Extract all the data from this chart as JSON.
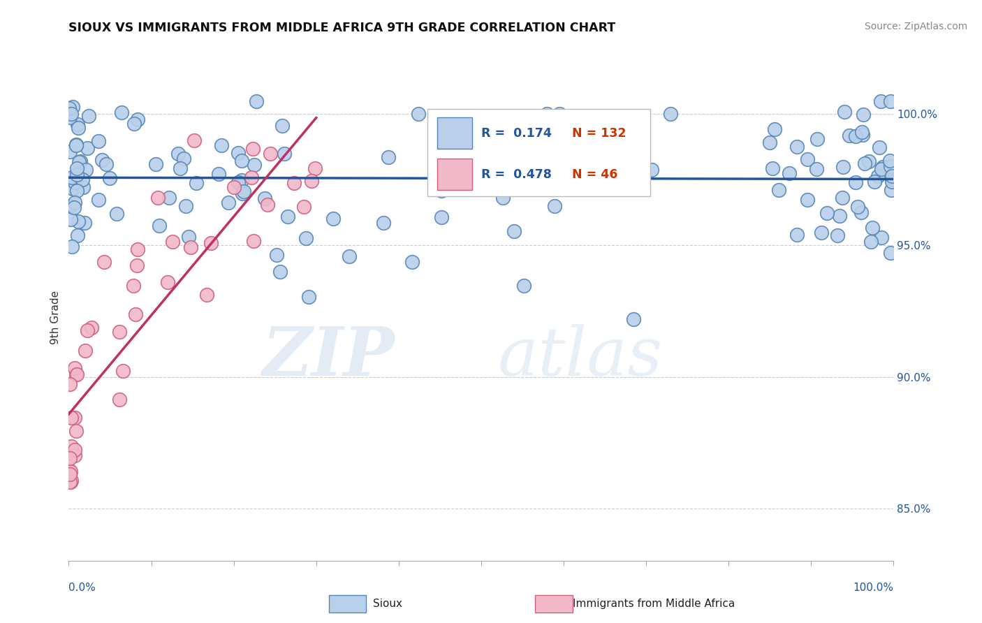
{
  "title": "SIOUX VS IMMIGRANTS FROM MIDDLE AFRICA 9TH GRADE CORRELATION CHART",
  "source": "Source: ZipAtlas.com",
  "ylabel": "9th Grade",
  "r_sioux": 0.174,
  "n_sioux": 132,
  "r_immigrants": 0.478,
  "n_immigrants": 46,
  "sioux_color": "#b8d0ea",
  "sioux_edge_color": "#5585b5",
  "sioux_line_color": "#2255a0",
  "immigrants_color": "#f0b8c8",
  "immigrants_edge_color": "#d06080",
  "immigrants_line_color": "#c03060",
  "background_color": "#ffffff",
  "ytick_values": [
    85.0,
    90.0,
    95.0,
    100.0
  ],
  "xlim": [
    0.0,
    100.0
  ],
  "ylim": [
    83.0,
    101.5
  ],
  "watermark_zip": "ZIP",
  "watermark_atlas": "atlas",
  "r_color": "#2255a0",
  "n_color": "#cc3300"
}
